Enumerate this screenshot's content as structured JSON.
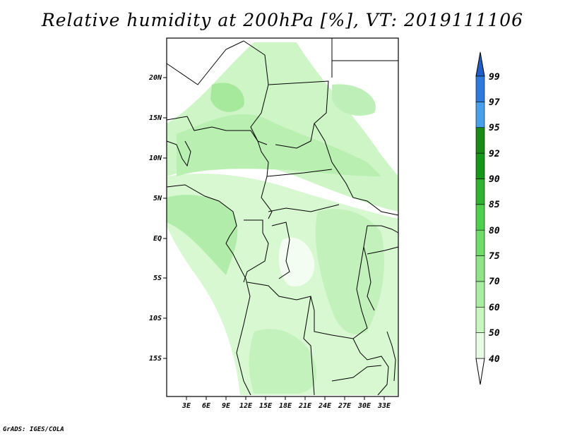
{
  "title": "Relative humidity at 200hPa [%], VT: 2019111106",
  "footer": "GrADS: IGES/COLA",
  "map": {
    "lat_labels": [
      "20N",
      "15N",
      "10N",
      "5N",
      "EQ",
      "5S",
      "10S",
      "15S"
    ],
    "lon_labels": [
      "3E",
      "6E",
      "9E",
      "12E",
      "15E",
      "18E",
      "21E",
      "24E",
      "27E",
      "30E",
      "33E"
    ]
  },
  "colorbar": {
    "labels": [
      "40",
      "50",
      "60",
      "70",
      "75",
      "80",
      "85",
      "90",
      "92",
      "95",
      "97",
      "99"
    ],
    "colors": [
      "#ffffff",
      "#e8fce4",
      "#c8f5c0",
      "#a8edA0",
      "#8ee486",
      "#6fdc6a",
      "#4fd04c",
      "#2fb32f",
      "#179717",
      "#1a8a16",
      "#4a9fea",
      "#2f78dc",
      "#1f5ec8"
    ]
  }
}
